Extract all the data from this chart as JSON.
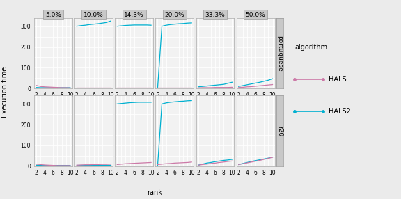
{
  "col_labels": [
    "5.0%",
    "10.0%",
    "14.3%",
    "20.0%",
    "33.3%",
    "50.0%"
  ],
  "row_labels": [
    "portuguese",
    "r20"
  ],
  "ranks": [
    2,
    3,
    4,
    5,
    6,
    7,
    8,
    9,
    10
  ],
  "hals_color": "#cc79a7",
  "hals2_color": "#00b0d0",
  "ylabel": "Execution time",
  "xlabel": "rank",
  "ylim": [
    0,
    340
  ],
  "yticks": [
    0,
    100,
    200,
    300
  ],
  "fig_bg": "#ebebeb",
  "panel_bg": "#f2f2f2",
  "strip_bg": "#c8c8c8",
  "grid_color": "#ffffff",
  "data": {
    "portuguese": {
      "5.0%": {
        "HALS": [
          15,
          10,
          8,
          7,
          6,
          5,
          4,
          4,
          3
        ],
        "HALS2": [
          5,
          4,
          4,
          4,
          4,
          4,
          4,
          4,
          4
        ]
      },
      "10.0%": {
        "HALS": [
          3,
          3,
          3,
          3,
          3,
          3,
          3,
          3,
          3
        ],
        "HALS2": [
          300,
          303,
          305,
          308,
          310,
          312,
          315,
          318,
          325
        ]
      },
      "14.3%": {
        "HALS": [
          3,
          3,
          3,
          3,
          3,
          3,
          3,
          3,
          3
        ],
        "HALS2": [
          300,
          302,
          304,
          305,
          306,
          306,
          306,
          306,
          305
        ]
      },
      "20.0%": {
        "HALS": [
          3,
          3,
          3,
          3,
          3,
          3,
          3,
          3,
          3
        ],
        "HALS2": [
          5,
          300,
          305,
          308,
          310,
          312,
          313,
          315,
          316
        ]
      },
      "33.3%": {
        "HALS": [
          3,
          4,
          4,
          4,
          5,
          5,
          5,
          5,
          6
        ],
        "HALS2": [
          8,
          10,
          12,
          14,
          16,
          18,
          20,
          25,
          30
        ]
      },
      "50.0%": {
        "HALS": [
          5,
          6,
          8,
          9,
          11,
          13,
          15,
          17,
          19
        ],
        "HALS2": [
          10,
          14,
          18,
          22,
          26,
          30,
          35,
          40,
          47
        ]
      }
    },
    "r20": {
      "5.0%": {
        "HALS": [
          10,
          8,
          6,
          5,
          4,
          3,
          3,
          3,
          3
        ],
        "HALS2": [
          5,
          4,
          4,
          4,
          4,
          4,
          4,
          4,
          4
        ]
      },
      "10.0%": {
        "HALS": [
          5,
          6,
          7,
          7,
          8,
          8,
          9,
          9,
          10
        ],
        "HALS2": [
          5,
          5,
          5,
          5,
          5,
          5,
          5,
          5,
          5
        ]
      },
      "14.3%": {
        "HALS": [
          8,
          10,
          12,
          13,
          14,
          15,
          16,
          17,
          18
        ],
        "HALS2": [
          300,
          302,
          304,
          306,
          307,
          308,
          308,
          308,
          308
        ]
      },
      "20.0%": {
        "HALS": [
          8,
          10,
          12,
          13,
          15,
          16,
          17,
          18,
          20
        ],
        "HALS2": [
          5,
          300,
          305,
          308,
          310,
          312,
          313,
          315,
          316
        ]
      },
      "33.3%": {
        "HALS": [
          5,
          8,
          10,
          13,
          15,
          18,
          20,
          23,
          25
        ],
        "HALS2": [
          5,
          10,
          15,
          18,
          22,
          25,
          28,
          30,
          33
        ]
      },
      "50.0%": {
        "HALS": [
          8,
          12,
          16,
          20,
          24,
          28,
          33,
          38,
          43
        ],
        "HALS2": [
          8,
          13,
          18,
          23,
          27,
          31,
          35,
          39,
          44
        ]
      }
    }
  }
}
